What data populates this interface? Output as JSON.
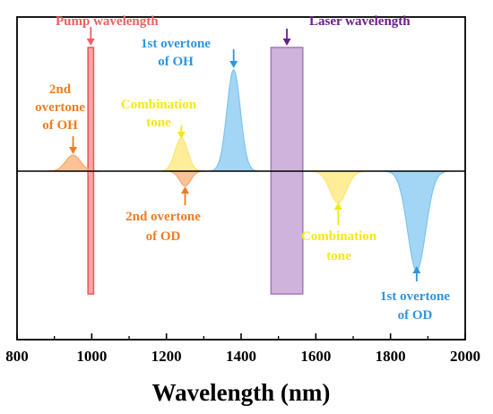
{
  "chart_data": {
    "type": "area",
    "xlabel": "Wavelength (nm)",
    "ylabel": "",
    "xlim": [
      800,
      2000
    ],
    "ylim": [
      -1,
      1
    ],
    "xticks": [
      800,
      1000,
      1200,
      1400,
      1600,
      1800,
      2000
    ],
    "grid": false,
    "bands": [
      {
        "name": "Pump wavelength",
        "x_min": 990,
        "x_max": 1005,
        "y_min": -1,
        "y_max": 1,
        "color": "#f08a8a",
        "label_color": "#f06060"
      },
      {
        "name": "Laser wavelength",
        "x_min": 1480,
        "x_max": 1565,
        "y_min": -1,
        "y_max": 1,
        "color": "#c09ad0",
        "label_color": "#6a1f8c"
      }
    ],
    "peaks": [
      {
        "label": "2nd overtone of OH",
        "lines": [
          "2nd",
          "overtone",
          "of OH"
        ],
        "center": 950,
        "amplitude": 0.13,
        "width": 20,
        "color": "#f6a96b",
        "label_color": "#ee7d22"
      },
      {
        "label": "Combination tone",
        "lines": [
          "Combination",
          "tone"
        ],
        "center": 1240,
        "amplitude": 0.27,
        "width": 17,
        "color": "#ffe66e",
        "label_color": "#f4e818"
      },
      {
        "label": "1st overtone of OH",
        "lines": [
          "1st overtone",
          "of OH"
        ],
        "center": 1380,
        "amplitude": 0.82,
        "width": 18,
        "color": "#7cc4f0",
        "label_color": "#2f95e0"
      },
      {
        "label": "2nd overtone of OD",
        "lines": [
          "2nd overtone",
          "of OD"
        ],
        "center": 1250,
        "amplitude": -0.12,
        "width": 15,
        "color": "#f6a96b",
        "label_color": "#ee7d22"
      },
      {
        "label": "Combination tone",
        "lines": [
          "Combination",
          "tone"
        ],
        "center": 1660,
        "amplitude": -0.26,
        "width": 22,
        "color": "#ffe66e",
        "label_color": "#f4e818"
      },
      {
        "label": "1st overtone of OD",
        "lines": [
          "1st overtone",
          "of OD"
        ],
        "center": 1870,
        "amplitude": -0.81,
        "width": 24,
        "color": "#7cc4f0",
        "label_color": "#2f95e0"
      }
    ]
  }
}
